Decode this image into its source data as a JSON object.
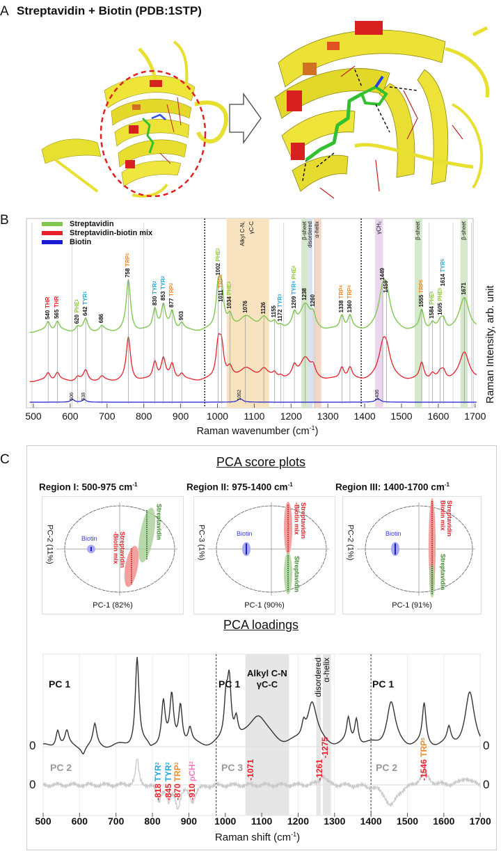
{
  "panel_a": {
    "letter": "A",
    "title": "Streptavidin + Biotin (PDB:1STP)"
  },
  "panel_b": {
    "letter": "B",
    "legend": [
      {
        "label": "Streptavidin",
        "color": "#7ec850"
      },
      {
        "label": "Streptavidin-biotin mix",
        "color": "#e8202a"
      },
      {
        "label": "Biotin",
        "color": "#1a1ad0"
      }
    ],
    "x_ticks": [
      "500",
      "600",
      "700",
      "800",
      "900",
      "1000",
      "1100",
      "1200",
      "1300",
      "1400",
      "1500",
      "1600",
      "1700"
    ],
    "x_label": "Raman wavenumber (cm",
    "x_label_sup": "-1",
    "x_label_end": ")",
    "y_label": "Raman Intensity, arb. unit",
    "region_dividers": [
      975,
      1400
    ],
    "bands": [
      {
        "label": "Alkyl C-N,",
        "label2": "γC-C",
        "from": 1025,
        "to": 1140,
        "color": "#f7e3bf"
      },
      {
        "label": "β-sheet",
        "from": 1228,
        "to": 1246,
        "color": "#d5e8cc"
      },
      {
        "label": "disordered",
        "from": 1246,
        "to": 1258,
        "color": "#d9e2ee"
      },
      {
        "label": "α-helix",
        "from": 1262,
        "to": 1282,
        "color": "#f3d7c4"
      },
      {
        "label": "γCH₂",
        "from": 1428,
        "to": 1450,
        "color": "#ead7ee"
      },
      {
        "label": "β-sheet",
        "from": 1536,
        "to": 1556,
        "color": "#d5e8cc"
      },
      {
        "label": "β-sheet",
        "from": 1660,
        "to": 1680,
        "color": "#d5e8cc"
      }
    ],
    "peaks": [
      {
        "wn": "540",
        "res": "THR",
        "sup": "",
        "color": "#e8202a"
      },
      {
        "wn": "565",
        "res": "THR",
        "sup": "",
        "color": "#e8202a"
      },
      {
        "wn": "620",
        "res": "PHE",
        "sup": "1",
        "color": "#8cc83c"
      },
      {
        "wn": "642",
        "res": "TYR",
        "sup": "1",
        "color": "#1fa9e0"
      },
      {
        "wn": "686",
        "res": "",
        "sup": "",
        "color": "#000"
      },
      {
        "wn": "758",
        "res": "TRP",
        "sup": "1",
        "color": "#f08a28"
      },
      {
        "wn": "830",
        "res": "TYR",
        "sup": "2",
        "color": "#1fa9e0"
      },
      {
        "wn": "853",
        "res": "TYR",
        "sup": "2",
        "color": "#1fa9e0"
      },
      {
        "wn": "877",
        "res": "TRP",
        "sup": "2",
        "color": "#f08a28"
      },
      {
        "wn": "903",
        "res": "",
        "sup": "",
        "color": "#000"
      },
      {
        "wn": "1002",
        "res": "PHE",
        "sup": "2",
        "color": "#8cc83c"
      },
      {
        "wn": "1011",
        "res": "TRP",
        "sup": "3",
        "color": "#f08a28"
      },
      {
        "wn": "1034",
        "res": "PHE",
        "sup": "3",
        "color": "#8cc83c"
      },
      {
        "wn": "1076",
        "res": "",
        "sup": "",
        "color": "#000"
      },
      {
        "wn": "1126",
        "res": "",
        "sup": "",
        "color": "#000"
      },
      {
        "wn": "1155",
        "res": "",
        "sup": "",
        "color": "#000"
      },
      {
        "wn": "1172",
        "res": "TYR",
        "sup": "3",
        "color": "#1fa9e0"
      },
      {
        "wn": "1209",
        "res": "TYR",
        "sup": "4",
        "color": "#1fa9e0",
        "res2": "PHE",
        "sup2": "4",
        "color2": "#8cc83c"
      },
      {
        "wn": "1238",
        "res": "",
        "sup": "",
        "color": "#000"
      },
      {
        "wn": "1260",
        "res": "",
        "sup": "",
        "color": "#000"
      },
      {
        "wn": "1338",
        "res": "TRP",
        "sup": "4",
        "color": "#f08a28"
      },
      {
        "wn": "1360",
        "res": "TRP",
        "sup": "4",
        "color": "#f08a28"
      },
      {
        "wn": "1449",
        "res": "",
        "sup": "",
        "color": "#000"
      },
      {
        "wn": "1459",
        "res": "",
        "sup": "",
        "color": "#000"
      },
      {
        "wn": "1555",
        "res": "TRP",
        "sup": "5",
        "color": "#f08a28"
      },
      {
        "wn": "1584",
        "res": "PHE",
        "sup": "5",
        "color": "#8cc83c"
      },
      {
        "wn": "1605",
        "res": "PHE",
        "sup": "6",
        "color": "#8cc83c"
      },
      {
        "wn": "1614",
        "res": "TYR",
        "sup": "5",
        "color": "#1fa9e0"
      },
      {
        "wn": "1671",
        "res": "",
        "sup": "",
        "color": "#000"
      }
    ],
    "biotin_peaks": [
      "606",
      "638",
      "1062",
      "1436"
    ]
  },
  "panel_c": {
    "letter": "C",
    "score_title": "PCA score plots",
    "score_plots": [
      {
        "title": "Region I: 500-975 cm",
        "title_sup": "-1",
        "x_label": "PC-1 (82%)",
        "y_label": "PC-2 (11%)",
        "groups": [
          {
            "label": "Biotin",
            "color": "#3a3ad8"
          },
          {
            "label": "Streptavidin",
            "label2": "-Biotin mix",
            "color": "#e8202a"
          },
          {
            "label": "Streptavidin",
            "color": "#3d8a2a"
          }
        ]
      },
      {
        "title": "Region II: 975-1400 cm",
        "title_sup": "-1",
        "x_label": "PC-1 (90%)",
        "y_label": "PC-3 (1%)",
        "groups": [
          {
            "label": "Biotin",
            "color": "#3a3ad8"
          },
          {
            "label": "Streptavidin",
            "label2": "-Biotin mix",
            "color": "#e8202a"
          },
          {
            "label": "Streptavidin",
            "color": "#3d8a2a"
          }
        ]
      },
      {
        "title": "Region III: 1400-1700 cm",
        "title_sup": "-1",
        "x_label": "PC-1 (91%)",
        "y_label": "PC-2 (1%)",
        "groups": [
          {
            "label": "Biotin",
            "color": "#3a3ad8"
          },
          {
            "label": "Streptavidin",
            "label2": "Biotin mix",
            "color": "#e8202a"
          },
          {
            "label": "Streptavidin",
            "color": "#3d8a2a"
          }
        ]
      }
    ],
    "loadings_title": "PCA loadings",
    "loading_labels": {
      "pc1_a": "PC 1",
      "pc1_b": "PC 1",
      "pc1_c": "PC 1",
      "pc2_a": "PC 2",
      "pc3_b": "PC 3",
      "pc2_c": "PC 2",
      "zero": "0"
    },
    "bands": [
      {
        "label": "Alkyl C-N",
        "label2": "γC-C",
        "from": 1055,
        "to": 1175
      },
      {
        "label": "disordered",
        "from": 1250,
        "to": 1262
      },
      {
        "label": "α-helix",
        "from": 1268,
        "to": 1290
      }
    ],
    "annotations": [
      {
        "wn": "818",
        "res": "TYR",
        "sup": "2",
        "color": "#1fa9e0"
      },
      {
        "wn": "845",
        "res": "TYR",
        "sup": "2",
        "color": "#1fa9e0"
      },
      {
        "wn": "870",
        "res": "TRP",
        "sup": "2",
        "color": "#f08a28"
      },
      {
        "wn": "910",
        "res": "ρCH",
        "sup": "2",
        "color": "#f07ac0"
      },
      {
        "wn": "1071",
        "res": "",
        "sup": "",
        "color": "#e8202a"
      },
      {
        "wn": "1261",
        "res": "",
        "sup": "",
        "color": "#e8202a"
      },
      {
        "wn": "1275",
        "res": "",
        "sup": "",
        "color": "#e8202a"
      },
      {
        "wn": "1546",
        "res": "TRP",
        "sup": "5",
        "color": "#f08a28"
      }
    ],
    "x_ticks": [
      "500",
      "600",
      "700",
      "800",
      "900",
      "1000",
      "1100",
      "1200",
      "1300",
      "1400",
      "1500",
      "1600",
      "1700"
    ],
    "x_label": "Raman shift (cm",
    "x_label_sup": "-1",
    "x_label_end": ")"
  }
}
